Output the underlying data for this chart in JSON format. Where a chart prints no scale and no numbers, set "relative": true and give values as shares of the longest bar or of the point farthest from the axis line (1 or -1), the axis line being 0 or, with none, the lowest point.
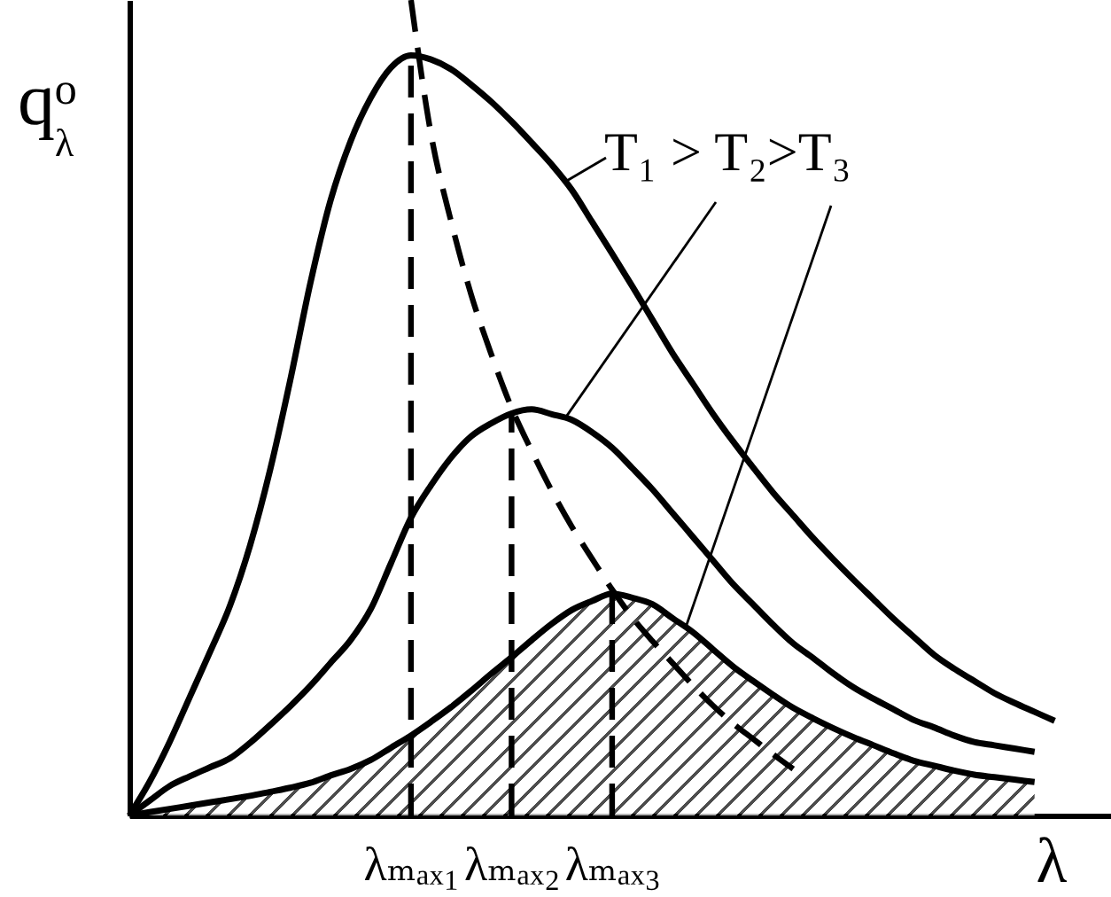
{
  "chart_data": {
    "type": "line",
    "relative": true,
    "xlabel": "λ",
    "ylabel": "qᵒ$_{λ}$",
    "annotations": [
      "T₁ > T₂>T₃"
    ],
    "categories": [
      null,
      null,
      null,
      null,
      null,
      null,
      null,
      null,
      null,
      null,
      null,
      null,
      null,
      null,
      "λₘₐₓ₁",
      null,
      null,
      null,
      null,
      "λₘₐₓ₂",
      null,
      null,
      null,
      null,
      "λₘₐₓ₃",
      null,
      null,
      null,
      null,
      null,
      null,
      null,
      null,
      null,
      null,
      null,
      null,
      null,
      null,
      null,
      null,
      null,
      null,
      null,
      null,
      null,
      null
    ],
    "line_style": "solid",
    "series": [
      {
        "color": "#000000",
        "values": [
          0,
          0.041,
          0.09,
          0.145,
          0.2,
          0.257,
          0.331,
          0.424,
          0.534,
          0.653,
          0.754,
          0.827,
          0.88,
          0.917,
          0.932,
          0.927,
          0.915,
          0.896,
          0.875,
          0.851,
          0.825,
          0.798,
          0.767,
          0.728,
          0.689,
          0.649,
          0.608,
          0.567,
          0.53,
          0.493,
          0.459,
          0.427,
          0.396,
          0.368,
          0.34,
          0.314,
          0.289,
          0.265,
          0.241,
          0.219,
          0.197,
          0.18,
          0.165,
          0.15,
          0.138,
          0.127,
          0.116
        ]
      },
      {
        "color": "#000000",
        "values": [
          0,
          0.018,
          0.036,
          0.048,
          0.059,
          0.07,
          0.089,
          0.111,
          0.134,
          0.159,
          0.187,
          0.215,
          0.253,
          0.309,
          0.365,
          0.405,
          0.439,
          0.465,
          0.481,
          0.493,
          0.498,
          0.492,
          0.485,
          0.47,
          0.451,
          0.426,
          0.4,
          0.371,
          0.342,
          0.313,
          0.284,
          0.259,
          0.234,
          0.211,
          0.193,
          0.174,
          0.157,
          0.143,
          0.13,
          0.117,
          0.108,
          0.098,
          0.09,
          0.086,
          0.082,
          0.078,
          null
        ]
      },
      {
        "type": "area",
        "color": "#000000",
        "values": [
          0,
          0.004,
          0.008,
          0.012,
          0.016,
          0.02,
          0.024,
          0.029,
          0.034,
          0.04,
          0.049,
          0.057,
          0.068,
          0.083,
          0.098,
          0.115,
          0.133,
          0.153,
          0.174,
          0.194,
          0.215,
          0.235,
          0.252,
          0.263,
          0.272,
          0.267,
          0.259,
          0.242,
          0.225,
          0.204,
          0.183,
          0.165,
          0.148,
          0.132,
          0.119,
          0.107,
          0.096,
          0.086,
          0.076,
          0.067,
          0.061,
          0.055,
          0.05,
          0.047,
          0.044,
          0.041,
          null
        ]
      },
      {
        "color": "#000000",
        "line_style": "dashed",
        "values": [
          null,
          null,
          null,
          null,
          null,
          null,
          null,
          null,
          null,
          null,
          null,
          null,
          null,
          null,
          1.0,
          0.835,
          0.728,
          0.638,
          0.565,
          0.5,
          0.447,
          0.398,
          0.354,
          0.315,
          0.277,
          0.243,
          0.214,
          0.187,
          0.16,
          0.135,
          0.113,
          0.094,
          0.075,
          0.057,
          null,
          null,
          null,
          null,
          null,
          null,
          null,
          null,
          null,
          null,
          null,
          null,
          null
        ]
      },
      {
        "color": "#000000",
        "line_style": "dashed",
        "x": [
          "λₘₐₓ₁",
          "λₘₐₓ₁"
        ],
        "values": [
          0,
          0.932
        ]
      },
      {
        "color": "#000000",
        "line_style": "dashed",
        "x": [
          "λₘₐₓ₂",
          "λₘₐₓ₂"
        ],
        "values": [
          0,
          0.493
        ]
      },
      {
        "color": "#000000",
        "line_style": "dashed",
        "x": [
          "λₘₐₓ₃",
          "λₘₐₓ₃"
        ],
        "values": [
          0,
          0.272
        ]
      }
    ]
  }
}
